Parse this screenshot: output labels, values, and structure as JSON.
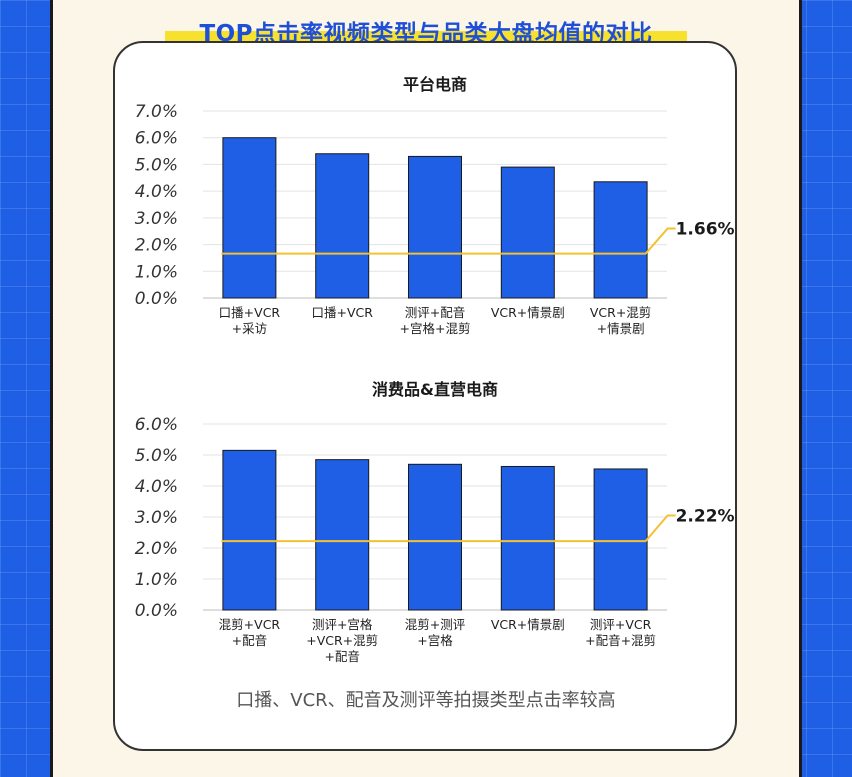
{
  "header": {
    "title": "TOP点击率视频类型与品类大盘均值的对比"
  },
  "footnote": "口播、VCR、配音及测评等拍摄类型点击率较高",
  "colors": {
    "bar": "#1f5fe6",
    "average_line": "#f2c233",
    "panel": "#fbf6e8",
    "background": "#1f5fe6"
  },
  "chart_data": [
    {
      "type": "bar",
      "title": "平台电商",
      "categories": [
        [
          "口播+VCR",
          "+采访"
        ],
        [
          "口播+VCR"
        ],
        [
          "测评+配音",
          "+宫格+混剪"
        ],
        [
          "VCR+情景剧"
        ],
        [
          "VCR+混剪",
          "+情景剧"
        ]
      ],
      "values": [
        6.0,
        5.4,
        5.3,
        4.9,
        4.35
      ],
      "average": 1.66,
      "average_label": "1.66%",
      "ylim": [
        0,
        7
      ],
      "yticks": [
        "0.0%",
        "1.0%",
        "2.0%",
        "3.0%",
        "4.0%",
        "5.0%",
        "6.0%",
        "7.0%"
      ],
      "grid": true
    },
    {
      "type": "bar",
      "title": "消费品&直营电商",
      "categories": [
        [
          "混剪+VCR",
          "+配音"
        ],
        [
          "测评+宫格",
          "+VCR+混剪",
          "+配音"
        ],
        [
          "混剪+测评",
          "+宫格"
        ],
        [
          "VCR+情景剧"
        ],
        [
          "测评+VCR",
          "+配音+混剪"
        ]
      ],
      "values": [
        5.15,
        4.85,
        4.7,
        4.63,
        4.55
      ],
      "average": 2.22,
      "average_label": "2.22%",
      "ylim": [
        0,
        6
      ],
      "yticks": [
        "0.0%",
        "1.0%",
        "2.0%",
        "3.0%",
        "4.0%",
        "5.0%",
        "6.0%"
      ],
      "grid": true
    }
  ]
}
